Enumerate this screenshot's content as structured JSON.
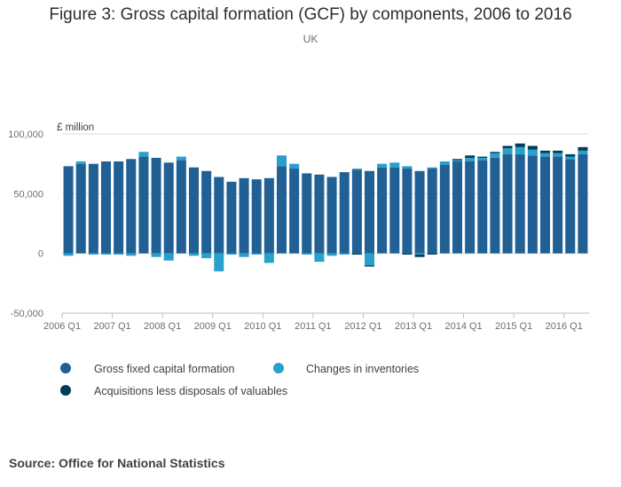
{
  "chart_data": {
    "type": "bar",
    "stacked": true,
    "title": "Figure 3: Gross capital formation (GCF) by components, 2006 to 2016",
    "subtitle": "UK",
    "unit_label": "£ million",
    "ylim": [
      -50000,
      100000
    ],
    "y_ticks": [
      {
        "value": 100000,
        "label": "100,000"
      },
      {
        "value": 50000,
        "label": "50,000"
      },
      {
        "value": 0,
        "label": "0"
      },
      {
        "value": -50000,
        "label": "-50,000"
      }
    ],
    "x_tick_labels": [
      "2006 Q1",
      "2007 Q1",
      "2008 Q1",
      "2009 Q1",
      "2010 Q1",
      "2011 Q1",
      "2012 Q1",
      "2013 Q1",
      "2014 Q1",
      "2015 Q1",
      "2016 Q1"
    ],
    "x_tick_every": 4,
    "categories": [
      "2006 Q1",
      "2006 Q2",
      "2006 Q3",
      "2006 Q4",
      "2007 Q1",
      "2007 Q2",
      "2007 Q3",
      "2007 Q4",
      "2008 Q1",
      "2008 Q2",
      "2008 Q3",
      "2008 Q4",
      "2009 Q1",
      "2009 Q2",
      "2009 Q3",
      "2009 Q4",
      "2010 Q1",
      "2010 Q2",
      "2010 Q3",
      "2010 Q4",
      "2011 Q1",
      "2011 Q2",
      "2011 Q3",
      "2011 Q4",
      "2012 Q1",
      "2012 Q2",
      "2012 Q3",
      "2012 Q4",
      "2013 Q1",
      "2013 Q2",
      "2013 Q3",
      "2013 Q4",
      "2014 Q1",
      "2014 Q2",
      "2014 Q3",
      "2014 Q4",
      "2015 Q1",
      "2015 Q2",
      "2015 Q3",
      "2015 Q4",
      "2016 Q1",
      "2016 Q2"
    ],
    "series": [
      {
        "name": "Gross fixed capital formation",
        "color": "#206095",
        "values": [
          73000,
          75000,
          75000,
          77000,
          77000,
          79000,
          81000,
          80000,
          76000,
          78000,
          72000,
          69000,
          64000,
          60000,
          63000,
          62000,
          63000,
          73000,
          71000,
          67000,
          66000,
          64000,
          68000,
          70000,
          69000,
          72000,
          72000,
          71000,
          69000,
          71000,
          74000,
          77000,
          77000,
          78000,
          80000,
          83000,
          83000,
          82000,
          81000,
          81000,
          79000,
          83000
        ]
      },
      {
        "name": "Changes in inventories",
        "color": "#27a0cc",
        "values": [
          -2000,
          2000,
          -1000,
          -1000,
          -1000,
          -2000,
          4000,
          -3000,
          -6000,
          3000,
          -2000,
          -4000,
          -15000,
          -1000,
          -3000,
          -1000,
          -8000,
          9000,
          4000,
          -1000,
          -7000,
          -2000,
          -1000,
          1000,
          -10000,
          3000,
          4000,
          2000,
          -1000,
          1000,
          3000,
          1000,
          3000,
          2000,
          4000,
          5000,
          6000,
          5000,
          3000,
          3000,
          2000,
          3000
        ]
      },
      {
        "name": "Acquisitions less disposals of valuables",
        "color": "#003c57",
        "values": [
          0,
          0,
          0,
          0,
          0,
          0,
          0,
          0,
          0,
          0,
          0,
          0,
          0,
          0,
          0,
          0,
          0,
          0,
          0,
          0,
          0,
          0,
          0,
          -1000,
          -1000,
          0,
          0,
          -1000,
          -2000,
          -1000,
          0,
          1000,
          2000,
          1000,
          1000,
          2000,
          3000,
          3000,
          2000,
          2000,
          2000,
          3000
        ]
      }
    ],
    "grid": true,
    "legend_position": "bottom"
  },
  "source": "Source: Office for National Statistics"
}
